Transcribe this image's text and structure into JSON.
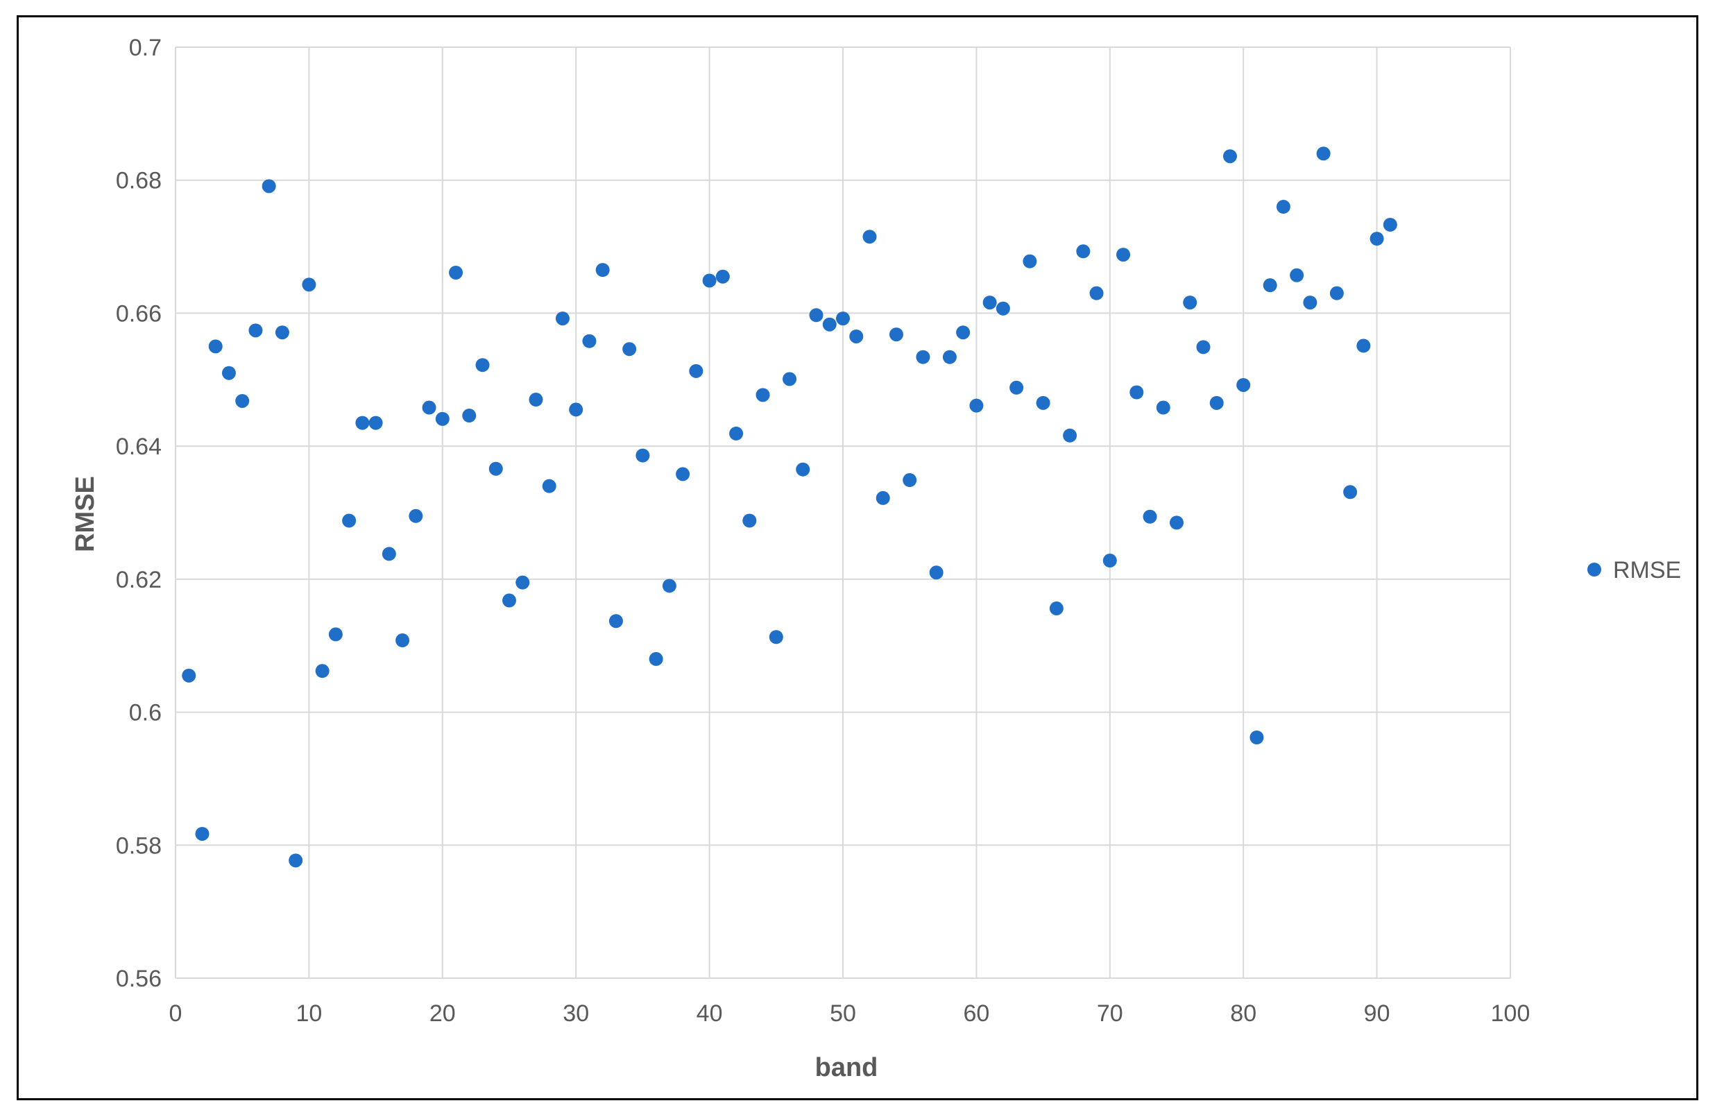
{
  "chart_data": {
    "type": "scatter",
    "xlabel": "band",
    "ylabel": "RMSE",
    "xlim": [
      0,
      100
    ],
    "ylim": [
      0.56,
      0.7
    ],
    "x_ticks": [
      "0",
      "10",
      "20",
      "30",
      "40",
      "50",
      "60",
      "70",
      "80",
      "90",
      "100"
    ],
    "y_ticks": [
      "0.56",
      "0.58",
      "0.6",
      "0.62",
      "0.64",
      "0.66",
      "0.68",
      "0.7"
    ],
    "grid": true,
    "legend_position": "right",
    "series": [
      {
        "name": "RMSE",
        "color": "#1f6fc9",
        "points": [
          [
            1,
            0.6055
          ],
          [
            2,
            0.5817
          ],
          [
            3,
            0.655
          ],
          [
            4,
            0.651
          ],
          [
            5,
            0.6468
          ],
          [
            6,
            0.6574
          ],
          [
            7,
            0.6791
          ],
          [
            8,
            0.6571
          ],
          [
            9,
            0.5777
          ],
          [
            10,
            0.6643
          ],
          [
            11,
            0.6062
          ],
          [
            12,
            0.6117
          ],
          [
            13,
            0.6288
          ],
          [
            14,
            0.6435
          ],
          [
            15,
            0.6435
          ],
          [
            16,
            0.6238
          ],
          [
            17,
            0.6108
          ],
          [
            18,
            0.6295
          ],
          [
            19,
            0.6458
          ],
          [
            20,
            0.6441
          ],
          [
            21,
            0.6661
          ],
          [
            22,
            0.6446
          ],
          [
            23,
            0.6522
          ],
          [
            24,
            0.6366
          ],
          [
            25,
            0.6168
          ],
          [
            26,
            0.6195
          ],
          [
            27,
            0.647
          ],
          [
            28,
            0.634
          ],
          [
            29,
            0.6592
          ],
          [
            30,
            0.6455
          ],
          [
            31,
            0.6558
          ],
          [
            32,
            0.6665
          ],
          [
            33,
            0.6137
          ],
          [
            34,
            0.6546
          ],
          [
            35,
            0.6386
          ],
          [
            36,
            0.608
          ],
          [
            37,
            0.619
          ],
          [
            38,
            0.6358
          ],
          [
            39,
            0.6513
          ],
          [
            40,
            0.6649
          ],
          [
            41,
            0.6655
          ],
          [
            42,
            0.6419
          ],
          [
            43,
            0.6288
          ],
          [
            44,
            0.6477
          ],
          [
            45,
            0.6113
          ],
          [
            46,
            0.6501
          ],
          [
            47,
            0.6365
          ],
          [
            48,
            0.6597
          ],
          [
            49,
            0.6583
          ],
          [
            50,
            0.6592
          ],
          [
            51,
            0.6565
          ],
          [
            52,
            0.6715
          ],
          [
            53,
            0.6322
          ],
          [
            54,
            0.6568
          ],
          [
            55,
            0.6349
          ],
          [
            56,
            0.6534
          ],
          [
            57,
            0.621
          ],
          [
            58,
            0.6534
          ],
          [
            59,
            0.6571
          ],
          [
            60,
            0.6461
          ],
          [
            61,
            0.6616
          ],
          [
            62,
            0.6607
          ],
          [
            63,
            0.6488
          ],
          [
            64,
            0.6678
          ],
          [
            65,
            0.6465
          ],
          [
            66,
            0.6156
          ],
          [
            67,
            0.6416
          ],
          [
            68,
            0.6693
          ],
          [
            69,
            0.663
          ],
          [
            70,
            0.6228
          ],
          [
            71,
            0.6688
          ],
          [
            72,
            0.6481
          ],
          [
            73,
            0.6294
          ],
          [
            74,
            0.6458
          ],
          [
            75,
            0.6285
          ],
          [
            76,
            0.6616
          ],
          [
            77,
            0.6549
          ],
          [
            78,
            0.6465
          ],
          [
            79,
            0.6836
          ],
          [
            80,
            0.6492
          ],
          [
            81,
            0.5962
          ],
          [
            82,
            0.6642
          ],
          [
            83,
            0.676
          ],
          [
            84,
            0.6657
          ],
          [
            85,
            0.6616
          ],
          [
            86,
            0.684
          ],
          [
            87,
            0.663
          ],
          [
            88,
            0.6331
          ],
          [
            89,
            0.6551
          ],
          [
            90,
            0.6712
          ],
          [
            91,
            0.6733
          ]
        ]
      }
    ]
  }
}
